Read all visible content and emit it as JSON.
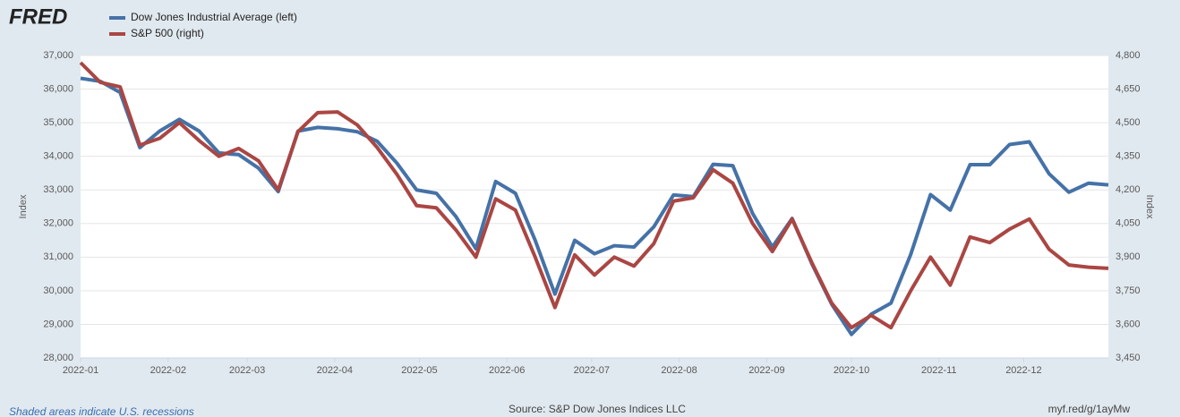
{
  "chart_data": {
    "type": "line",
    "logo": "FRED",
    "y_label": "Index",
    "y2_label": "Index",
    "footer_note": "Shaded areas indicate U.S. recessions",
    "source": "Source: S&P Dow Jones Indices LLC",
    "link": "myf.red/g/1ayMw",
    "grid": true,
    "legend": "top-left",
    "x": [
      0,
      7,
      14,
      21,
      28,
      35,
      42,
      49,
      56,
      63,
      70,
      77,
      84,
      91,
      98,
      105,
      112,
      119,
      126,
      133,
      140,
      147,
      154,
      161,
      168,
      175,
      182,
      189,
      196,
      203,
      210,
      217,
      224,
      231,
      238,
      245,
      252,
      259,
      266,
      273,
      280,
      287,
      294,
      301,
      308,
      315,
      322,
      329,
      336,
      343,
      350,
      357,
      364
    ],
    "xlim": [
      0,
      364
    ],
    "xticks": [
      {
        "value": 0,
        "label": "2022-01"
      },
      {
        "value": 31,
        "label": "2022-02"
      },
      {
        "value": 59,
        "label": "2022-03"
      },
      {
        "value": 90,
        "label": "2022-04"
      },
      {
        "value": 120,
        "label": "2022-05"
      },
      {
        "value": 151,
        "label": "2022-06"
      },
      {
        "value": 181,
        "label": "2022-07"
      },
      {
        "value": 212,
        "label": "2022-08"
      },
      {
        "value": 243,
        "label": "2022-09"
      },
      {
        "value": 273,
        "label": "2022-10"
      },
      {
        "value": 304,
        "label": "2022-11"
      },
      {
        "value": 334,
        "label": "2022-12"
      }
    ],
    "ylim": [
      28000,
      37000
    ],
    "yticks": [
      {
        "value": 28000,
        "label": "28,000"
      },
      {
        "value": 29000,
        "label": "29,000"
      },
      {
        "value": 30000,
        "label": "30,000"
      },
      {
        "value": 31000,
        "label": "31,000"
      },
      {
        "value": 32000,
        "label": "32,000"
      },
      {
        "value": 33000,
        "label": "33,000"
      },
      {
        "value": 34000,
        "label": "34,000"
      },
      {
        "value": 35000,
        "label": "35,000"
      },
      {
        "value": 36000,
        "label": "36,000"
      },
      {
        "value": 37000,
        "label": "37,000"
      }
    ],
    "y2lim": [
      3450,
      4800
    ],
    "y2ticks": [
      {
        "value": 3450,
        "label": "3,450"
      },
      {
        "value": 3600,
        "label": "3,600"
      },
      {
        "value": 3750,
        "label": "3,750"
      },
      {
        "value": 3900,
        "label": "3,900"
      },
      {
        "value": 4050,
        "label": "4,050"
      },
      {
        "value": 4200,
        "label": "4,200"
      },
      {
        "value": 4350,
        "label": "4,350"
      },
      {
        "value": 4500,
        "label": "4,500"
      },
      {
        "value": 4650,
        "label": "4,650"
      },
      {
        "value": 4800,
        "label": "4,800"
      }
    ],
    "series": [
      {
        "name": "Dow Jones Industrial Average (left)",
        "color": "#4572a7",
        "axis": "y",
        "values": [
          36320,
          36230,
          35900,
          34260,
          34750,
          35100,
          34750,
          34100,
          34050,
          33650,
          32950,
          34750,
          34860,
          34820,
          34730,
          34450,
          33800,
          33000,
          32900,
          32200,
          31250,
          33250,
          32900,
          31500,
          29900,
          31500,
          31100,
          31340,
          31300,
          31900,
          32850,
          32800,
          33760,
          33720,
          32300,
          31300,
          32150,
          30800,
          29600,
          28700,
          29300,
          29630,
          31080,
          32860,
          32400,
          33750,
          33750,
          34350,
          34430,
          33480,
          32930,
          33200,
          33150
        ]
      },
      {
        "name": "S&P 500 (right)",
        "color": "#aa4643",
        "axis": "y2",
        "values": [
          4768,
          4680,
          4660,
          4400,
          4430,
          4500,
          4420,
          4350,
          4385,
          4330,
          4200,
          4460,
          4545,
          4548,
          4490,
          4390,
          4270,
          4130,
          4120,
          4020,
          3900,
          4160,
          4110,
          3900,
          3675,
          3910,
          3820,
          3900,
          3860,
          3960,
          4150,
          4165,
          4290,
          4230,
          4050,
          3925,
          4070,
          3875,
          3695,
          3585,
          3640,
          3585,
          3750,
          3900,
          3775,
          3990,
          3965,
          4025,
          4070,
          3935,
          3865,
          3855,
          3850
        ]
      }
    ]
  }
}
